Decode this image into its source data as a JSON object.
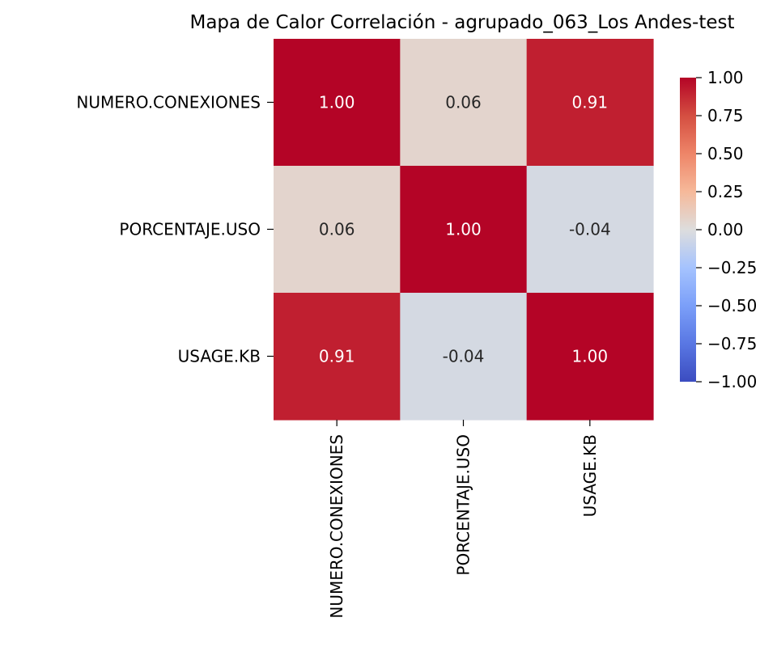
{
  "chart_data": {
    "type": "heatmap",
    "title": "Mapa de Calor Correlación - agrupado_063_Los Andes-test",
    "rows": [
      "NUMERO.CONEXIONES",
      "PORCENTAJE.USO",
      "USAGE.KB"
    ],
    "columns": [
      "NUMERO.CONEXIONES",
      "PORCENTAJE.USO",
      "USAGE.KB"
    ],
    "values": [
      [
        1.0,
        0.06,
        0.91
      ],
      [
        0.06,
        1.0,
        -0.04
      ],
      [
        0.91,
        -0.04,
        1.0
      ]
    ],
    "annotations": [
      [
        "1.00",
        "0.06",
        "0.91"
      ],
      [
        "0.06",
        "1.00",
        "-0.04"
      ],
      [
        "0.91",
        "-0.04",
        "1.00"
      ]
    ],
    "colormap": "coolwarm",
    "vmin": -1.0,
    "vmax": 1.0,
    "colorbar_ticks": [
      1.0,
      0.75,
      0.5,
      0.25,
      0.0,
      -0.25,
      -0.5,
      -0.75,
      -1.0
    ],
    "colorbar_tick_labels": [
      "1.00",
      "0.75",
      "0.50",
      "0.25",
      "0.00",
      "−0.25",
      "−0.50",
      "−0.75",
      "−1.00"
    ]
  }
}
